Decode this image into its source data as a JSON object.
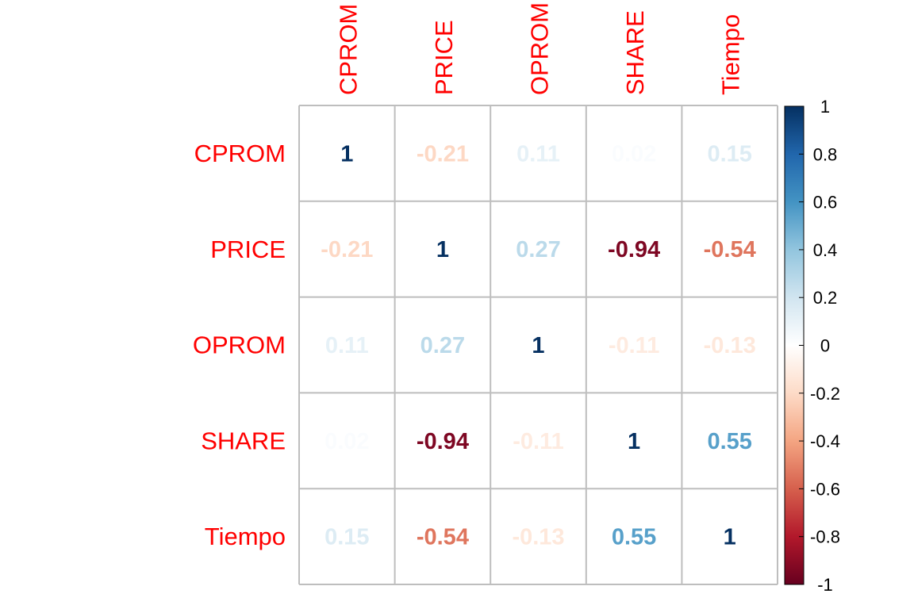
{
  "chart_data": {
    "type": "heatmap",
    "variables": [
      "CPROM",
      "PRICE",
      "OPROM",
      "SHARE",
      "Tiempo"
    ],
    "matrix": [
      [
        1,
        -0.21,
        0.11,
        0.02,
        0.15
      ],
      [
        -0.21,
        1,
        0.27,
        -0.94,
        -0.54
      ],
      [
        0.11,
        0.27,
        1,
        -0.11,
        -0.13
      ],
      [
        0.02,
        -0.94,
        -0.11,
        1,
        0.55
      ],
      [
        0.15,
        -0.54,
        -0.13,
        0.55,
        1
      ]
    ],
    "display_labels": [
      [
        "1",
        "-0.21",
        "0.11",
        "0.02",
        "0.15"
      ],
      [
        "-0.21",
        "1",
        "0.27",
        "-0.94",
        "-0.54"
      ],
      [
        "0.11",
        "0.27",
        "1",
        "-0.11",
        "-0.13"
      ],
      [
        "0.02",
        "-0.94",
        "-0.11",
        "1",
        "0.55"
      ],
      [
        "0.15",
        "-0.54",
        "-0.13",
        "0.55",
        "1"
      ]
    ],
    "colorbar": {
      "range": [
        -1,
        1
      ],
      "tick_labels": [
        "1",
        "0.8",
        "0.6",
        "0.4",
        "0.2",
        "0",
        "-0.2",
        "-0.4",
        "-0.6",
        "-0.8",
        "-1"
      ],
      "tick_values": [
        1,
        0.8,
        0.6,
        0.4,
        0.2,
        0,
        -0.2,
        -0.4,
        -0.6,
        -0.8,
        -1
      ]
    },
    "label_color": "#ff0000",
    "grid_color": "#bebebe",
    "palette": [
      "#67001F",
      "#B2182B",
      "#D6604D",
      "#F4A582",
      "#FDDBC7",
      "#FFFFFF",
      "#D1E5F0",
      "#92C5DE",
      "#4393C3",
      "#2166AC",
      "#053061"
    ]
  }
}
